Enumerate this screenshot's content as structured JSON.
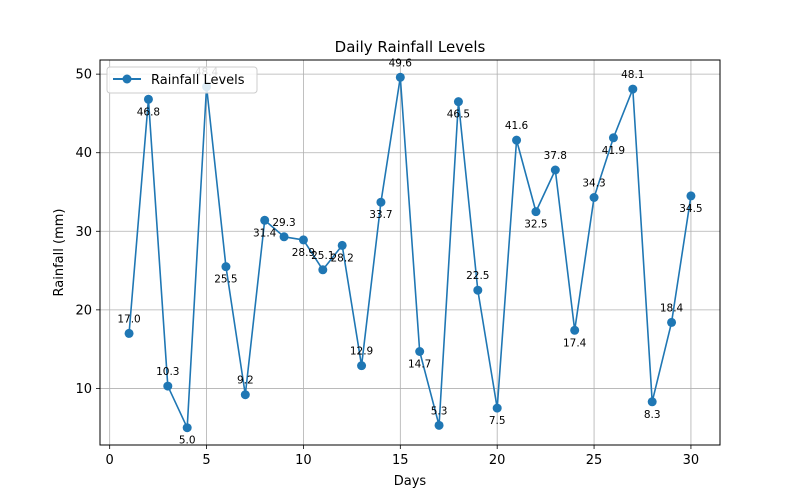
{
  "chart_data": {
    "type": "line",
    "title": "Daily Rainfall Levels",
    "xlabel": "Days",
    "ylabel": "Rainfall (mm)",
    "xlim": [
      -0.5,
      31.5
    ],
    "ylim": [
      2.8,
      51.8
    ],
    "xticks": [
      0,
      5,
      10,
      15,
      20,
      25,
      30
    ],
    "yticks": [
      10,
      20,
      30,
      40,
      50
    ],
    "grid": true,
    "legend_position": "top-left",
    "x": [
      1,
      2,
      3,
      4,
      5,
      6,
      7,
      8,
      9,
      10,
      11,
      12,
      13,
      14,
      15,
      16,
      17,
      18,
      19,
      20,
      21,
      22,
      23,
      24,
      25,
      26,
      27,
      28,
      29,
      30
    ],
    "series": [
      {
        "name": "Rainfall Levels",
        "color": "#1f77b4",
        "marker": "circle",
        "values": [
          17.0,
          46.8,
          10.3,
          5.0,
          48.4,
          25.5,
          9.2,
          31.4,
          29.3,
          28.9,
          25.1,
          28.2,
          12.9,
          33.7,
          49.6,
          14.7,
          5.3,
          46.5,
          22.5,
          7.5,
          41.6,
          32.5,
          37.8,
          17.4,
          34.3,
          41.9,
          48.1,
          8.3,
          18.4,
          34.5
        ],
        "labels": [
          "17.0",
          "46.8",
          "10.3",
          "5.0",
          "48.4",
          "25.5",
          "9.2",
          "31.4",
          "29.3",
          "28.9",
          "25.1",
          "28.2",
          "12.9",
          "33.7",
          "49.6",
          "14.7",
          "5.3",
          "46.5",
          "22.5",
          "7.5",
          "41.6",
          "32.5",
          "37.8",
          "17.4",
          "34.3",
          "41.9",
          "48.1",
          "8.3",
          "18.4",
          "34.5"
        ],
        "label_position": [
          "above",
          "below",
          "above",
          "below",
          "above",
          "below",
          "above",
          "below",
          "above",
          "below",
          "above",
          "below",
          "above",
          "below",
          "above",
          "below",
          "above",
          "below",
          "above",
          "below",
          "above",
          "below",
          "above",
          "below",
          "above",
          "below",
          "above",
          "below",
          "above",
          "below"
        ]
      }
    ]
  }
}
